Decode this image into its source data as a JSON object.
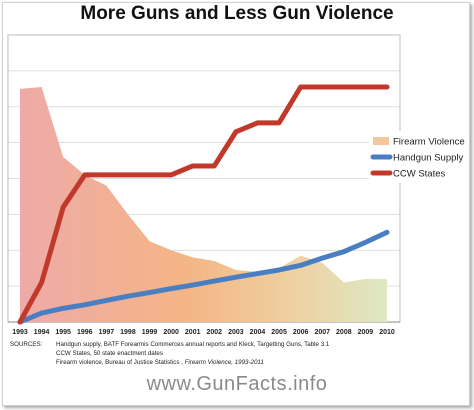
{
  "chart_data": {
    "type": "line",
    "title": "More Guns and Less Gun Violence",
    "categories": [
      "1993",
      "1994",
      "1995",
      "1996",
      "1997",
      "1998",
      "1999",
      "2000",
      "2001",
      "2002",
      "2003",
      "2004",
      "2005",
      "2006",
      "2007",
      "2008",
      "2009",
      "2010"
    ],
    "ylim": [
      0,
      8
    ],
    "grid": true,
    "legend_position": "right",
    "series": [
      {
        "name": "Firearm Violence",
        "kind": "area",
        "color": "#f3b67c",
        "values": [
          6.5,
          6.55,
          4.6,
          4.1,
          3.8,
          3.0,
          2.25,
          2.0,
          1.8,
          1.7,
          1.45,
          1.4,
          1.5,
          1.85,
          1.65,
          1.1,
          1.2,
          1.2
        ]
      },
      {
        "name": "Handgun Supply",
        "kind": "line",
        "color": "#4a7ec3",
        "values": [
          0,
          0.25,
          0.38,
          0.48,
          0.6,
          0.72,
          0.82,
          0.93,
          1.03,
          1.14,
          1.25,
          1.35,
          1.45,
          1.58,
          1.78,
          1.96,
          2.22,
          2.5
        ]
      },
      {
        "name": "CCW States",
        "kind": "line",
        "color": "#c0392b",
        "values": [
          0,
          1.1,
          3.2,
          4.1,
          4.1,
          4.1,
          4.1,
          4.1,
          4.35,
          4.35,
          5.3,
          5.55,
          5.55,
          6.55,
          6.55,
          6.55,
          6.55,
          6.55
        ]
      }
    ]
  },
  "sources": {
    "label": "SOURCES:",
    "line1": "Handgun supply, BATF Forearmis Commerces annual reports and Kleck, Targetting Guns, Table 3.1",
    "line2": "CCW States, 50 state enactment dates",
    "line3_prefix": "Firearm violence, Bureau of Justice Statistics , ",
    "line3_italic": "Firearm Violence, 1993-2011"
  },
  "footer": "www.GunFacts.info"
}
